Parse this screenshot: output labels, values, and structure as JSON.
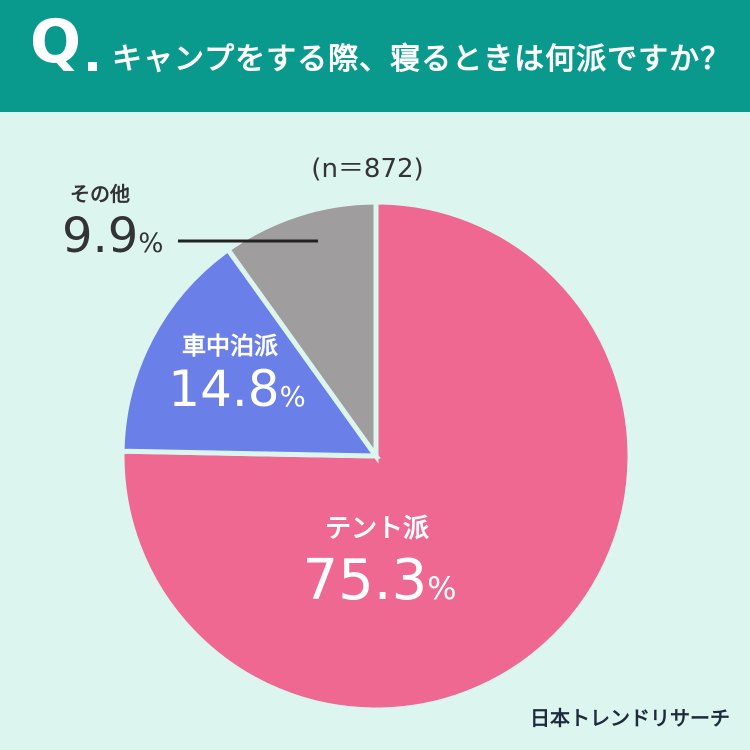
{
  "header": {
    "q_label": "Q",
    "title": "キャンプをする際、寝るときは何派ですか？"
  },
  "sample_label": "(n＝872)",
  "chart_data": {
    "type": "pie",
    "title": "キャンプをする際、寝るときは何派ですか？",
    "sample_size": 872,
    "unit": "%",
    "slices": [
      {
        "name": "テント派",
        "value": 75.3,
        "value_label": "75.3",
        "color": "#ee6892"
      },
      {
        "name": "車中泊派",
        "value": 14.8,
        "value_label": "14.8",
        "color": "#6a7fe8"
      },
      {
        "name": "その他",
        "value": 9.9,
        "value_label": "9.9",
        "color": "#a09d9e"
      }
    ],
    "start": "12 o'clock",
    "direction": "clockwise"
  },
  "brand": "日本トレンドリサーチ"
}
